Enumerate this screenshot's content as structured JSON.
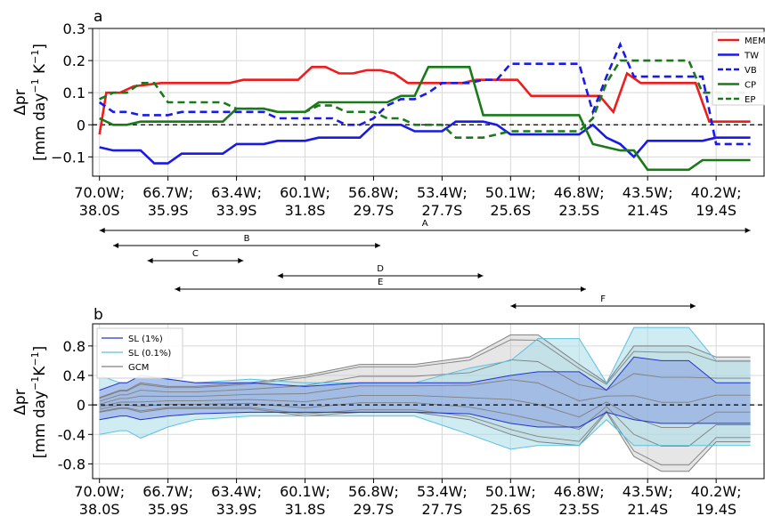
{
  "chart_data": [
    {
      "panel": "a",
      "type": "line",
      "ylabel_main": "Δpr",
      "ylabel_unit": "[mm day",
      "ylabel_exp1": "−1",
      "ylabel_mid": " K",
      "ylabel_exp2": "−1",
      "ylabel_end": "]",
      "ylim": [
        -0.16,
        0.3
      ],
      "yticks": [
        -0.1,
        0,
        0.1,
        0.2,
        0.3
      ],
      "ytick_labels": [
        "−0.1",
        "0",
        "0.1",
        "0.2",
        "0.3"
      ],
      "x_positions": [
        0,
        10,
        20,
        30,
        40,
        50,
        60,
        70,
        80,
        90
      ],
      "xtick_line1": [
        "70.0W;",
        "66.7W;",
        "63.4W;",
        "60.1W;",
        "56.8W;",
        "53.4W;",
        "50.1W;",
        "46.8W;",
        "43.5W;",
        "40.2W;"
      ],
      "xtick_line2": [
        "38.0S",
        "35.9S",
        "33.9S",
        "31.8S",
        "29.7S",
        "27.7S",
        "25.6S",
        "23.5S",
        "21.4S",
        "19.4S"
      ],
      "xlim": [
        -1,
        97
      ],
      "grid": true,
      "zero_line": true,
      "legend_position": "upper-right",
      "series": [
        {
          "name": "MEM",
          "color": "#ee1c1c",
          "dash": false,
          "x": [
            0,
            1,
            3,
            5,
            7,
            9,
            11,
            13,
            15,
            17,
            19,
            21,
            23,
            25,
            27,
            29,
            31,
            33,
            35,
            37,
            39,
            41,
            43,
            45,
            47,
            49,
            51,
            53,
            55,
            57,
            59,
            61,
            63,
            65,
            67,
            69,
            71,
            73,
            75,
            77,
            79,
            81,
            83,
            85,
            87,
            89,
            91,
            93,
            95
          ],
          "y": [
            -0.03,
            0.1,
            0.1,
            0.12,
            0.125,
            0.13,
            0.13,
            0.13,
            0.13,
            0.13,
            0.13,
            0.14,
            0.14,
            0.14,
            0.14,
            0.14,
            0.18,
            0.18,
            0.16,
            0.16,
            0.17,
            0.17,
            0.16,
            0.13,
            0.13,
            0.13,
            0.13,
            0.13,
            0.14,
            0.14,
            0.14,
            0.14,
            0.09,
            0.09,
            0.09,
            0.09,
            0.09,
            0.09,
            0.04,
            0.16,
            0.13,
            0.13,
            0.13,
            0.13,
            0.13,
            0.01,
            0.01,
            0.01,
            0.01
          ]
        },
        {
          "name": "TW",
          "color": "#1a1ae6",
          "dash": false,
          "x": [
            0,
            2,
            4,
            6,
            8,
            10,
            12,
            14,
            16,
            18,
            20,
            22,
            24,
            26,
            28,
            30,
            32,
            34,
            36,
            38,
            40,
            42,
            44,
            46,
            48,
            50,
            52,
            54,
            56,
            58,
            60,
            62,
            64,
            66,
            68,
            70,
            72,
            74,
            76,
            78,
            80,
            82,
            84,
            86,
            88,
            90,
            92,
            94,
            95
          ],
          "y": [
            -0.07,
            -0.08,
            -0.08,
            -0.08,
            -0.12,
            -0.12,
            -0.09,
            -0.09,
            -0.09,
            -0.09,
            -0.06,
            -0.06,
            -0.06,
            -0.05,
            -0.05,
            -0.05,
            -0.04,
            -0.04,
            -0.04,
            -0.04,
            0.0,
            0.0,
            0.0,
            -0.02,
            -0.02,
            -0.02,
            0.01,
            0.01,
            0.01,
            0.0,
            -0.03,
            -0.03,
            -0.03,
            -0.03,
            -0.03,
            -0.03,
            0.0,
            -0.04,
            -0.06,
            -0.1,
            -0.05,
            -0.05,
            -0.05,
            -0.05,
            -0.05,
            -0.04,
            -0.04,
            -0.04,
            -0.04
          ]
        },
        {
          "name": "VB",
          "color": "#1a1ae6",
          "dash": true,
          "x": [
            0,
            2,
            4,
            6,
            8,
            10,
            12,
            14,
            16,
            18,
            20,
            22,
            24,
            26,
            28,
            30,
            32,
            34,
            36,
            38,
            40,
            42,
            44,
            46,
            48,
            50,
            52,
            54,
            56,
            58,
            60,
            62,
            64,
            66,
            68,
            70,
            72,
            74,
            76,
            78,
            80,
            82,
            84,
            86,
            88,
            90,
            92,
            94,
            95
          ],
          "y": [
            0.07,
            0.04,
            0.04,
            0.03,
            0.03,
            0.03,
            0.04,
            0.04,
            0.04,
            0.04,
            0.04,
            0.04,
            0.04,
            0.02,
            0.02,
            0.02,
            0.02,
            0.02,
            0.0,
            0.0,
            0.02,
            0.06,
            0.08,
            0.08,
            0.1,
            0.13,
            0.13,
            0.13,
            0.14,
            0.14,
            0.19,
            0.19,
            0.19,
            0.19,
            0.19,
            0.19,
            0.04,
            0.15,
            0.25,
            0.15,
            0.15,
            0.15,
            0.15,
            0.15,
            0.15,
            -0.06,
            -0.06,
            -0.06,
            -0.06
          ]
        },
        {
          "name": "CP",
          "color": "#1a7a1a",
          "dash": false,
          "x": [
            0,
            2,
            4,
            6,
            8,
            10,
            12,
            14,
            16,
            18,
            20,
            22,
            24,
            26,
            28,
            30,
            32,
            34,
            36,
            38,
            40,
            42,
            44,
            46,
            48,
            50,
            52,
            54,
            56,
            58,
            60,
            62,
            64,
            66,
            68,
            70,
            72,
            74,
            76,
            78,
            80,
            82,
            84,
            86,
            88,
            90,
            92,
            94,
            95
          ],
          "y": [
            0.02,
            0.0,
            0.0,
            0.01,
            0.01,
            0.01,
            0.01,
            0.01,
            0.01,
            0.01,
            0.05,
            0.05,
            0.05,
            0.04,
            0.04,
            0.04,
            0.07,
            0.07,
            0.07,
            0.07,
            0.07,
            0.07,
            0.09,
            0.09,
            0.18,
            0.18,
            0.18,
            0.18,
            0.03,
            0.03,
            0.03,
            0.03,
            0.03,
            0.03,
            0.03,
            0.03,
            -0.06,
            -0.07,
            -0.08,
            -0.08,
            -0.14,
            -0.14,
            -0.14,
            -0.14,
            -0.11,
            -0.11,
            -0.11,
            -0.11,
            -0.11
          ]
        },
        {
          "name": "EP",
          "color": "#1a7a1a",
          "dash": true,
          "x": [
            0,
            2,
            4,
            6,
            8,
            10,
            12,
            14,
            16,
            18,
            20,
            22,
            24,
            26,
            28,
            30,
            32,
            34,
            36,
            38,
            40,
            42,
            44,
            46,
            48,
            50,
            52,
            54,
            56,
            58,
            60,
            62,
            64,
            66,
            68,
            70,
            72,
            74,
            76,
            78,
            80,
            82,
            84,
            86,
            88,
            90,
            92,
            94,
            95
          ],
          "y": [
            0.08,
            0.1,
            0.1,
            0.13,
            0.13,
            0.07,
            0.07,
            0.07,
            0.07,
            0.07,
            0.05,
            0.05,
            0.05,
            0.04,
            0.04,
            0.04,
            0.06,
            0.06,
            0.04,
            0.04,
            0.04,
            0.02,
            0.02,
            0.0,
            0.0,
            0.0,
            -0.04,
            -0.04,
            -0.04,
            -0.03,
            -0.02,
            -0.02,
            -0.02,
            -0.02,
            -0.02,
            -0.02,
            0.02,
            0.13,
            0.2,
            0.2,
            0.2,
            0.2,
            0.2,
            0.2,
            0.1,
            0.1,
            0.1,
            0.1,
            0.1
          ]
        }
      ]
    },
    {
      "panel": "b",
      "type": "area",
      "ylabel_main": "Δpr",
      "ylabel_unit": "[mm day",
      "ylabel_exp1": "−1",
      "ylabel_mid": "K",
      "ylabel_exp2": "−1",
      "ylabel_end": "]",
      "ylim": [
        -1.0,
        1.1
      ],
      "yticks": [
        -0.8,
        -0.4,
        0,
        0.4,
        0.8
      ],
      "ytick_labels": [
        "-0.8",
        "-0.4",
        "0",
        "0.4",
        "0.8"
      ],
      "xtick_line1": [
        "70.0W;",
        "66.7W;",
        "63.4W;",
        "60.1W;",
        "56.8W;",
        "53.4W;",
        "50.1W;",
        "46.8W;",
        "43.5W;",
        "40.2W;"
      ],
      "xtick_line2": [
        "38.0S",
        "35.9S",
        "33.9S",
        "31.8S",
        "29.7S",
        "27.7S",
        "25.6S",
        "23.5S",
        "21.4S",
        "19.4S"
      ],
      "legend_position": "upper-left",
      "colors": {
        "sl1": "#2233cc",
        "sl01": "#5bc0de",
        "gcm": "#808080"
      },
      "series": [
        {
          "name": "SL (1%)",
          "x": [
            0,
            3,
            4,
            6,
            10,
            14,
            22,
            30,
            38,
            46,
            54,
            60,
            64,
            70,
            74,
            78,
            82,
            86,
            90,
            95
          ],
          "upper": [
            0.2,
            0.3,
            0.3,
            0.4,
            0.35,
            0.3,
            0.3,
            0.25,
            0.3,
            0.3,
            0.3,
            0.4,
            0.45,
            0.45,
            0.2,
            0.65,
            0.6,
            0.6,
            0.3,
            0.3
          ],
          "lower": [
            -0.2,
            -0.15,
            -0.15,
            -0.2,
            -0.15,
            -0.12,
            -0.1,
            -0.1,
            -0.1,
            -0.1,
            -0.12,
            -0.25,
            -0.3,
            -0.3,
            -0.1,
            -0.2,
            -0.25,
            -0.25,
            -0.25,
            -0.25
          ]
        },
        {
          "name": "SL (0.1%)",
          "x": [
            0,
            3,
            4,
            6,
            10,
            14,
            22,
            30,
            38,
            46,
            54,
            60,
            64,
            70,
            74,
            78,
            82,
            86,
            90,
            95
          ],
          "upper": [
            0.4,
            0.3,
            0.3,
            0.4,
            0.35,
            0.3,
            0.35,
            0.3,
            0.3,
            0.3,
            0.5,
            0.6,
            0.9,
            0.9,
            0.3,
            1.05,
            1.05,
            1.05,
            0.6,
            0.6
          ],
          "lower": [
            -0.4,
            -0.35,
            -0.35,
            -0.45,
            -0.3,
            -0.2,
            -0.15,
            -0.15,
            -0.15,
            -0.15,
            -0.4,
            -0.6,
            -0.55,
            -0.55,
            -0.2,
            -0.55,
            -0.55,
            -0.55,
            -0.55,
            -0.55
          ]
        },
        {
          "name": "GCM",
          "x": [
            0,
            3,
            4,
            6,
            10,
            14,
            22,
            30,
            38,
            46,
            54,
            60,
            64,
            70,
            74,
            78,
            82,
            86,
            90,
            95
          ],
          "upper": [
            0.1,
            0.2,
            0.2,
            0.3,
            0.25,
            0.25,
            0.3,
            0.4,
            0.55,
            0.55,
            0.65,
            0.95,
            0.95,
            0.55,
            0.3,
            0.8,
            0.8,
            0.8,
            0.65,
            0.65
          ],
          "lower": [
            -0.1,
            -0.05,
            -0.05,
            -0.1,
            -0.05,
            -0.05,
            -0.05,
            -0.15,
            -0.1,
            -0.1,
            -0.2,
            -0.4,
            -0.5,
            -0.55,
            -0.1,
            -0.7,
            -0.9,
            -0.9,
            -0.5,
            -0.5
          ]
        }
      ]
    }
  ],
  "labels": {
    "panel_a": "a",
    "panel_b": "b"
  },
  "ranges": [
    {
      "label": "A",
      "from": 0,
      "to": 95
    },
    {
      "label": "B",
      "from": 2,
      "to": 41
    },
    {
      "label": "C",
      "from": 7,
      "to": 21
    },
    {
      "label": "D",
      "from": 26,
      "to": 56
    },
    {
      "label": "E",
      "from": 11,
      "to": 71
    },
    {
      "label": "F",
      "from": 60,
      "to": 87
    }
  ]
}
